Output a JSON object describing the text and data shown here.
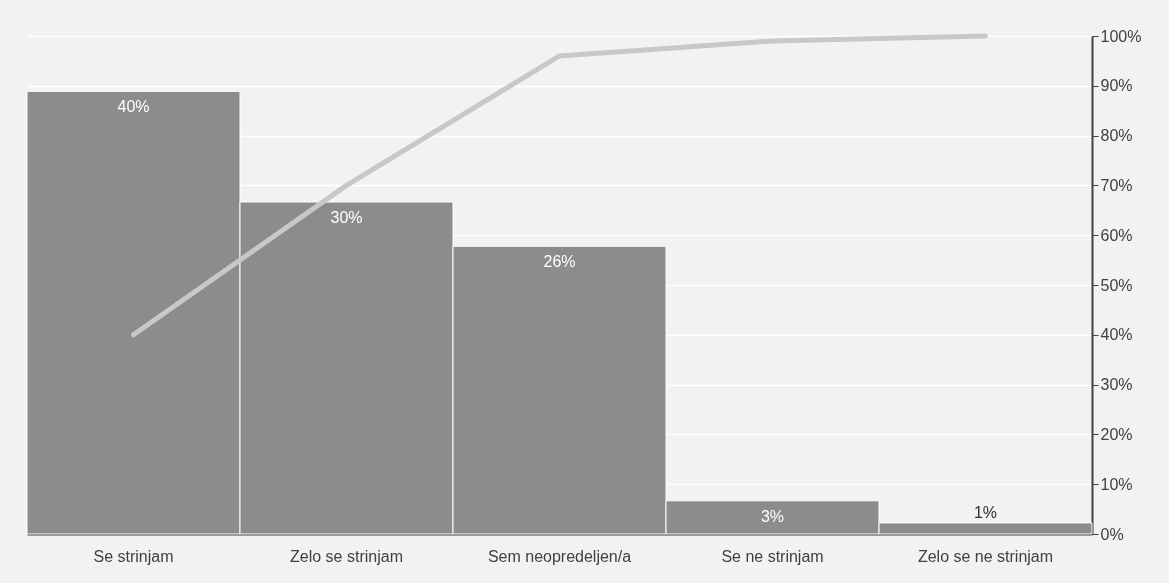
{
  "chart_data": {
    "type": "bar",
    "categories": [
      "Se strinjam",
      "Zelo se strinjam",
      "Sem neopredeljen/a",
      "Se ne strinjam",
      "Zelo se ne strinjam"
    ],
    "series": [
      {
        "color": "#8c8c8c",
        "values": [
          40,
          30,
          26,
          3,
          1
        ],
        "value_labels": [
          "40%",
          "30%",
          "26%",
          "3%",
          "1%"
        ]
      },
      {
        "type": "line",
        "color": "#c8c8c8",
        "axis": "y2",
        "values": [
          40,
          70,
          96,
          99,
          100
        ]
      }
    ],
    "ylim": [
      0,
      45
    ],
    "y2lim": [
      0,
      100
    ],
    "y2ticks": [
      {
        "value": 0,
        "label": "0%"
      },
      {
        "value": 10,
        "label": "10%"
      },
      {
        "value": 20,
        "label": "20%"
      },
      {
        "value": 30,
        "label": "30%"
      },
      {
        "value": 40,
        "label": "40%"
      },
      {
        "value": 50,
        "label": "50%"
      },
      {
        "value": 60,
        "label": "60%"
      },
      {
        "value": 70,
        "label": "70%"
      },
      {
        "value": 80,
        "label": "80%"
      },
      {
        "value": 90,
        "label": "90%"
      },
      {
        "value": 100,
        "label": "100%"
      }
    ],
    "grid": true,
    "marker": "none",
    "line_style": "solid"
  }
}
